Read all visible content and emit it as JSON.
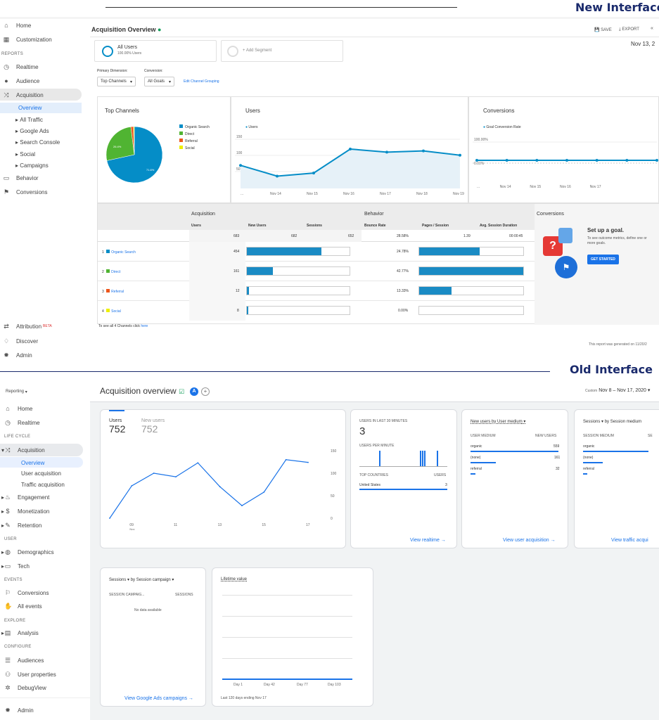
{
  "labels": {
    "new_interface": "New Interface",
    "old_interface": "Old Interface"
  },
  "ua": {
    "sidebar": {
      "home": "Home",
      "customization": "Customization",
      "reports_section": "REPORTS",
      "realtime": "Realtime",
      "audience": "Audience",
      "acquisition": "Acquisition",
      "overview": "Overview",
      "all_traffic": "All Traffic",
      "google_ads": "Google Ads",
      "search_console": "Search Console",
      "social": "Social",
      "campaigns": "Campaigns",
      "behavior": "Behavior",
      "conversions": "Conversions",
      "attribution": "Attribution",
      "beta": "BETA",
      "discover": "Discover",
      "admin": "Admin"
    },
    "title": "Acquisition Overview",
    "toolbar": {
      "save": "SAVE",
      "export": "EXPORT"
    },
    "date": "Nov 13, 2",
    "segment": {
      "name": "All Users",
      "pct": "100.00% Users",
      "add": "+ Add Segment"
    },
    "primary_dimension": {
      "label": "Primary Dimension:",
      "value": "Top Channels"
    },
    "conversion": {
      "label": "Conversion:",
      "value": "All Goals"
    },
    "edit_grouping": "Edit Channel Grouping",
    "top_channels": {
      "title": "Top Channels",
      "legend": [
        "Organic Search",
        "Direct",
        "Referral",
        "Social"
      ],
      "colors": [
        "#058dc7",
        "#50b432",
        "#ed561b",
        "#edef00"
      ],
      "pct_labels": [
        "71.6%",
        "26.4%"
      ]
    },
    "users_chart": {
      "title": "Users",
      "legend": "Users",
      "y_ticks": [
        "150",
        "100",
        "50"
      ],
      "x_ticks": [
        "...",
        "Nov 14",
        "Nov 15",
        "Nov 16",
        "Nov 17",
        "Nov 18",
        "Nov 19"
      ]
    },
    "conv_chart": {
      "title": "Conversions",
      "legend": "Goal Conversion Rate",
      "y_ticks": [
        "100.00%",
        "0.00%"
      ],
      "x_ticks": [
        "...",
        "Nov 14",
        "Nov 15",
        "Nov 16",
        "Nov 17"
      ]
    },
    "table": {
      "acq_header": "Acquisition",
      "beh_header": "Behavior",
      "conv_header": "Conversions",
      "cols": [
        "Users",
        "New Users",
        "Sessions",
        "Bounce Rate",
        "Pages / Session",
        "Avg. Session Duration"
      ],
      "totals": [
        "683",
        "682",
        "652",
        "28.58%",
        "1.39",
        "00:00:45"
      ],
      "rows": [
        {
          "num": "1",
          "name": "Organic Search",
          "users": "454",
          "bounce": "24.78%"
        },
        {
          "num": "2",
          "name": "Direct",
          "users": "161",
          "bounce": "42.77%"
        },
        {
          "num": "3",
          "name": "Referral",
          "users": "12",
          "bounce": "13.33%"
        },
        {
          "num": "4",
          "name": "Social",
          "users": "8",
          "bounce": "0.00%"
        }
      ],
      "see_all": "To see all 4 Channels click",
      "here": "here"
    },
    "goal": {
      "title": "Set up a goal.",
      "desc": "To see outcome metrics, define one or more goals.",
      "button": "GET STARTED"
    },
    "footer": "This report was generated on 11/20/2"
  },
  "ga4": {
    "sidebar": {
      "reporting": "Reporting",
      "home": "Home",
      "realtime": "Realtime",
      "life_cycle": "LIFE CYCLE",
      "acquisition": "Acquisition",
      "overview": "Overview",
      "user_acq": "User acquisition",
      "traffic_acq": "Traffic acquisition",
      "engagement": "Engagement",
      "monetization": "Monetization",
      "retention": "Retention",
      "user_section": "USER",
      "demographics": "Demographics",
      "tech": "Tech",
      "events_section": "EVENTS",
      "conversions": "Conversions",
      "all_events": "All events",
      "explore_section": "EXPLORE",
      "analysis": "Analysis",
      "configure_section": "CONFIGURE",
      "audiences": "Audiences",
      "user_props": "User properties",
      "debugview": "DebugView",
      "admin": "Admin"
    },
    "title": "Acquisition overview",
    "avatar": "A",
    "custom": "Custom",
    "date_range": "Nov 8 – Nov 17, 2020",
    "users_card": {
      "users_label": "Users",
      "users_value": "752",
      "new_label": "New users",
      "new_value": "752",
      "y_ticks": [
        "150",
        "100",
        "50",
        "0"
      ],
      "x_ticks": [
        "09",
        "11",
        "13",
        "15",
        "17"
      ],
      "x_sub": "Nov"
    },
    "realtime_card": {
      "title": "USERS IN LAST 30 MINUTES",
      "value": "3",
      "per_minute": "USERS PER MINUTE",
      "top_countries": "TOP COUNTRIES",
      "users_col": "USERS",
      "country": "United States",
      "country_val": "3",
      "link": "View realtime →"
    },
    "medium_card": {
      "title": "New users by User medium",
      "col1": "USER MEDIUM",
      "col2": "NEW USERS",
      "rows": [
        {
          "k": "organic",
          "v": "559"
        },
        {
          "k": "(none)",
          "v": "161"
        },
        {
          "k": "referral",
          "v": "32"
        }
      ],
      "link": "View user acquisition →"
    },
    "session_card": {
      "title_a": "Sessions",
      "title_b": "by Session medium",
      "col1": "SESSION MEDIUM",
      "col2": "SE",
      "rows": [
        "organic",
        "(none)",
        "referral"
      ],
      "link": "View traffic acqui"
    },
    "campaign_card": {
      "title_a": "Sessions",
      "title_b": "by Session campaign",
      "col1": "SESSION CAMPAIG...",
      "col2": "SESSIONS",
      "empty": "No data available",
      "link": "View Google Ads campaigns →"
    },
    "lifetime_card": {
      "title": "Lifetime value",
      "x_ticks": [
        "Day 1",
        "Day 42",
        "Day 77",
        "Day 103"
      ],
      "footer": "Last 120 days ending Nov 17"
    }
  },
  "chart_data": [
    {
      "type": "pie",
      "title": "Top Channels",
      "categories": [
        "Organic Search",
        "Direct",
        "Referral",
        "Social"
      ],
      "values": [
        71.6,
        26.4,
        1.5,
        0.5
      ]
    },
    {
      "type": "line",
      "title": "Users",
      "categories": [
        "Nov 13",
        "Nov 14",
        "Nov 15",
        "Nov 16",
        "Nov 17",
        "Nov 18",
        "Nov 19"
      ],
      "series": [
        {
          "name": "Users",
          "values": [
            75,
            40,
            50,
            128,
            118,
            122,
            108
          ]
        }
      ],
      "ylim": [
        0,
        160
      ]
    },
    {
      "type": "line",
      "title": "Conversions",
      "categories": [
        "Nov 13",
        "Nov 14",
        "Nov 15",
        "Nov 16",
        "Nov 17",
        "Nov 18",
        "Nov 19"
      ],
      "series": [
        {
          "name": "Goal Conversion Rate",
          "values": [
            0,
            0,
            0,
            0,
            0,
            0,
            0
          ]
        }
      ],
      "ylim": [
        0,
        100
      ]
    },
    {
      "type": "line",
      "title": "Users",
      "categories": [
        "08",
        "09",
        "10",
        "11",
        "12",
        "13",
        "14",
        "15",
        "16",
        "17"
      ],
      "series": [
        {
          "name": "Users",
          "values": [
            0,
            72,
            100,
            92,
            123,
            70,
            28,
            58,
            130,
            124
          ]
        }
      ],
      "ylim": [
        0,
        150
      ]
    }
  ]
}
